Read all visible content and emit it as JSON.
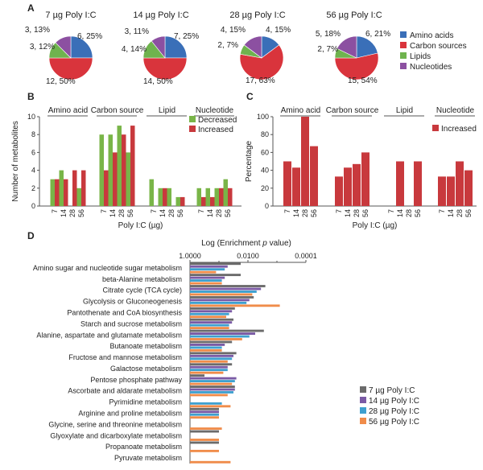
{
  "colors": {
    "amino": "#3a6fb8",
    "carbon": "#d9343c",
    "lipids": "#6fb34e",
    "nucleotides": "#8c50a1",
    "decreased": "#79b548",
    "increased": "#c8393d",
    "dose7": "#6b6b6b",
    "dose14": "#7a5aa5",
    "dose28": "#3ea0cf",
    "dose56": "#f08c4a"
  },
  "panel_labels": {
    "a": "A",
    "b": "B",
    "c": "C",
    "d": "D"
  },
  "chart_data": [
    {
      "panel": "A",
      "type": "pie",
      "legend": [
        "Amino acids",
        "Carbon sources",
        "Lipids",
        "Nucleotides"
      ],
      "pies": [
        {
          "title": "7 µg Poly I:C",
          "values": [
            6,
            12,
            3,
            3
          ],
          "labels": [
            "6, 25%",
            "12, 50%",
            "3, 12%",
            "3, 13%"
          ]
        },
        {
          "title": "14 µg Poly I:C",
          "values": [
            7,
            14,
            4,
            3
          ],
          "labels": [
            "7, 25%",
            "14, 50%",
            "4, 14%",
            "3, 11%"
          ]
        },
        {
          "title": "28 µg Poly I:C",
          "values": [
            4,
            17,
            2,
            4
          ],
          "labels": [
            "4, 15%",
            "17, 63%",
            "2, 7%",
            "4, 15%"
          ]
        },
        {
          "title": "56 µg Poly I:C",
          "values": [
            6,
            15,
            2,
            5
          ],
          "labels": [
            "6, 21%",
            "15, 54%",
            "2, 7%",
            "5, 18%"
          ]
        }
      ]
    },
    {
      "panel": "B",
      "type": "bar",
      "groups": [
        "Amino acid",
        "Carbon source",
        "Lipid",
        "Nucleotide"
      ],
      "doses": [
        "7",
        "14",
        "28",
        "56"
      ],
      "series": [
        {
          "name": "Decreased",
          "values": [
            [
              3,
              4,
              0,
              2
            ],
            [
              8,
              8,
              9,
              6
            ],
            [
              3,
              2,
              2,
              1
            ],
            [
              2,
              2,
              2,
              3
            ]
          ]
        },
        {
          "name": "Increased",
          "values": [
            [
              3,
              3,
              4,
              4
            ],
            [
              4,
              6,
              8,
              9
            ],
            [
              0,
              2,
              0,
              1
            ],
            [
              1,
              1,
              2,
              2
            ]
          ]
        }
      ],
      "ylabel": "Number of metabolites",
      "xlabel": "Poly I:C (µg)",
      "ylim": [
        0,
        10
      ],
      "yticks": [
        0,
        2,
        4,
        6,
        8,
        10
      ]
    },
    {
      "panel": "C",
      "type": "bar",
      "groups": [
        "Amino acid",
        "Carbon source",
        "Lipid",
        "Nucleotide"
      ],
      "doses": [
        "7",
        "14",
        "28",
        "56"
      ],
      "series": [
        {
          "name": "Increased",
          "values": [
            [
              50,
              43,
              100,
              67
            ],
            [
              33,
              43,
              47,
              60
            ],
            [
              0,
              50,
              0,
              50
            ],
            [
              33,
              33,
              50,
              40
            ]
          ]
        }
      ],
      "ylabel": "Percentage",
      "xlabel": "Poly I:C (µg)",
      "ylim": [
        0,
        100
      ],
      "yticks": [
        0,
        20,
        40,
        60,
        80,
        100
      ]
    },
    {
      "panel": "D",
      "type": "bar",
      "orientation": "horizontal",
      "axis_title": "Log (Enrichment p value)",
      "axis_title_main": "Log (Enrichment ",
      "axis_title_p": "p",
      "axis_title_tail": " value)",
      "xscale": "log",
      "xticks": [
        "1.0000",
        "0.0100",
        "0.0001"
      ],
      "series_names": [
        "7 µg Poly I:C",
        "14 µg Poly I:C",
        "28 µg Poly I:C",
        "56 µg Poly I:C"
      ],
      "categories": [
        "Amino sugar and nucleotide sugar metabolism",
        "beta-Alanine metabolism",
        "Citrate cycle (TCA cycle)",
        "Glycolysis or Gluconeogenesis",
        "Pantothenate and CoA biosynthesis",
        "Starch and sucrose metabolism",
        "Alanine, aspartate and glutamate metabolism",
        "Butanoate metabolism",
        "Fructose and mannose metabolism",
        "Galactose metabolism",
        "Pentose phosphate pathway",
        "Ascorbate and aldarate metabolism",
        "Pyrimidine metabolism",
        "Arginine and proline metabolism",
        "Glycine, serine and threonine metabolism",
        "Glyoxylate and dicarboxylate metabolism",
        "Propanoate metabolism",
        "Pyruvate metabolism"
      ],
      "values_log10": [
        [
          1.75,
          1.3,
          1.2,
          0.9
        ],
        [
          1.75,
          1.2,
          1.1,
          1.1
        ],
        [
          2.6,
          2.45,
          2.3,
          2.15
        ],
        [
          2.2,
          2.05,
          1.95,
          3.1
        ],
        [
          1.55,
          1.45,
          1.35,
          1.25
        ],
        [
          1.5,
          1.45,
          1.35,
          1.35
        ],
        [
          2.55,
          2.25,
          2.05,
          1.8
        ],
        [
          1.45,
          1.2,
          1.1,
          1.1
        ],
        [
          1.6,
          1.5,
          1.45,
          1.3
        ],
        [
          1.45,
          1.3,
          1.3,
          1.15
        ],
        [
          0.5,
          1.6,
          1.55,
          1.45
        ],
        [
          1.55,
          1.55,
          1.5,
          1.3
        ],
        [
          0,
          0,
          1.1,
          1.4
        ],
        [
          1.0,
          1.0,
          1.0,
          1.0
        ],
        [
          0,
          0,
          0,
          1.1
        ],
        [
          1.0,
          0,
          0,
          1.0
        ],
        [
          1.0,
          0,
          0,
          1.0
        ],
        [
          0,
          0,
          0,
          1.4
        ]
      ]
    }
  ]
}
